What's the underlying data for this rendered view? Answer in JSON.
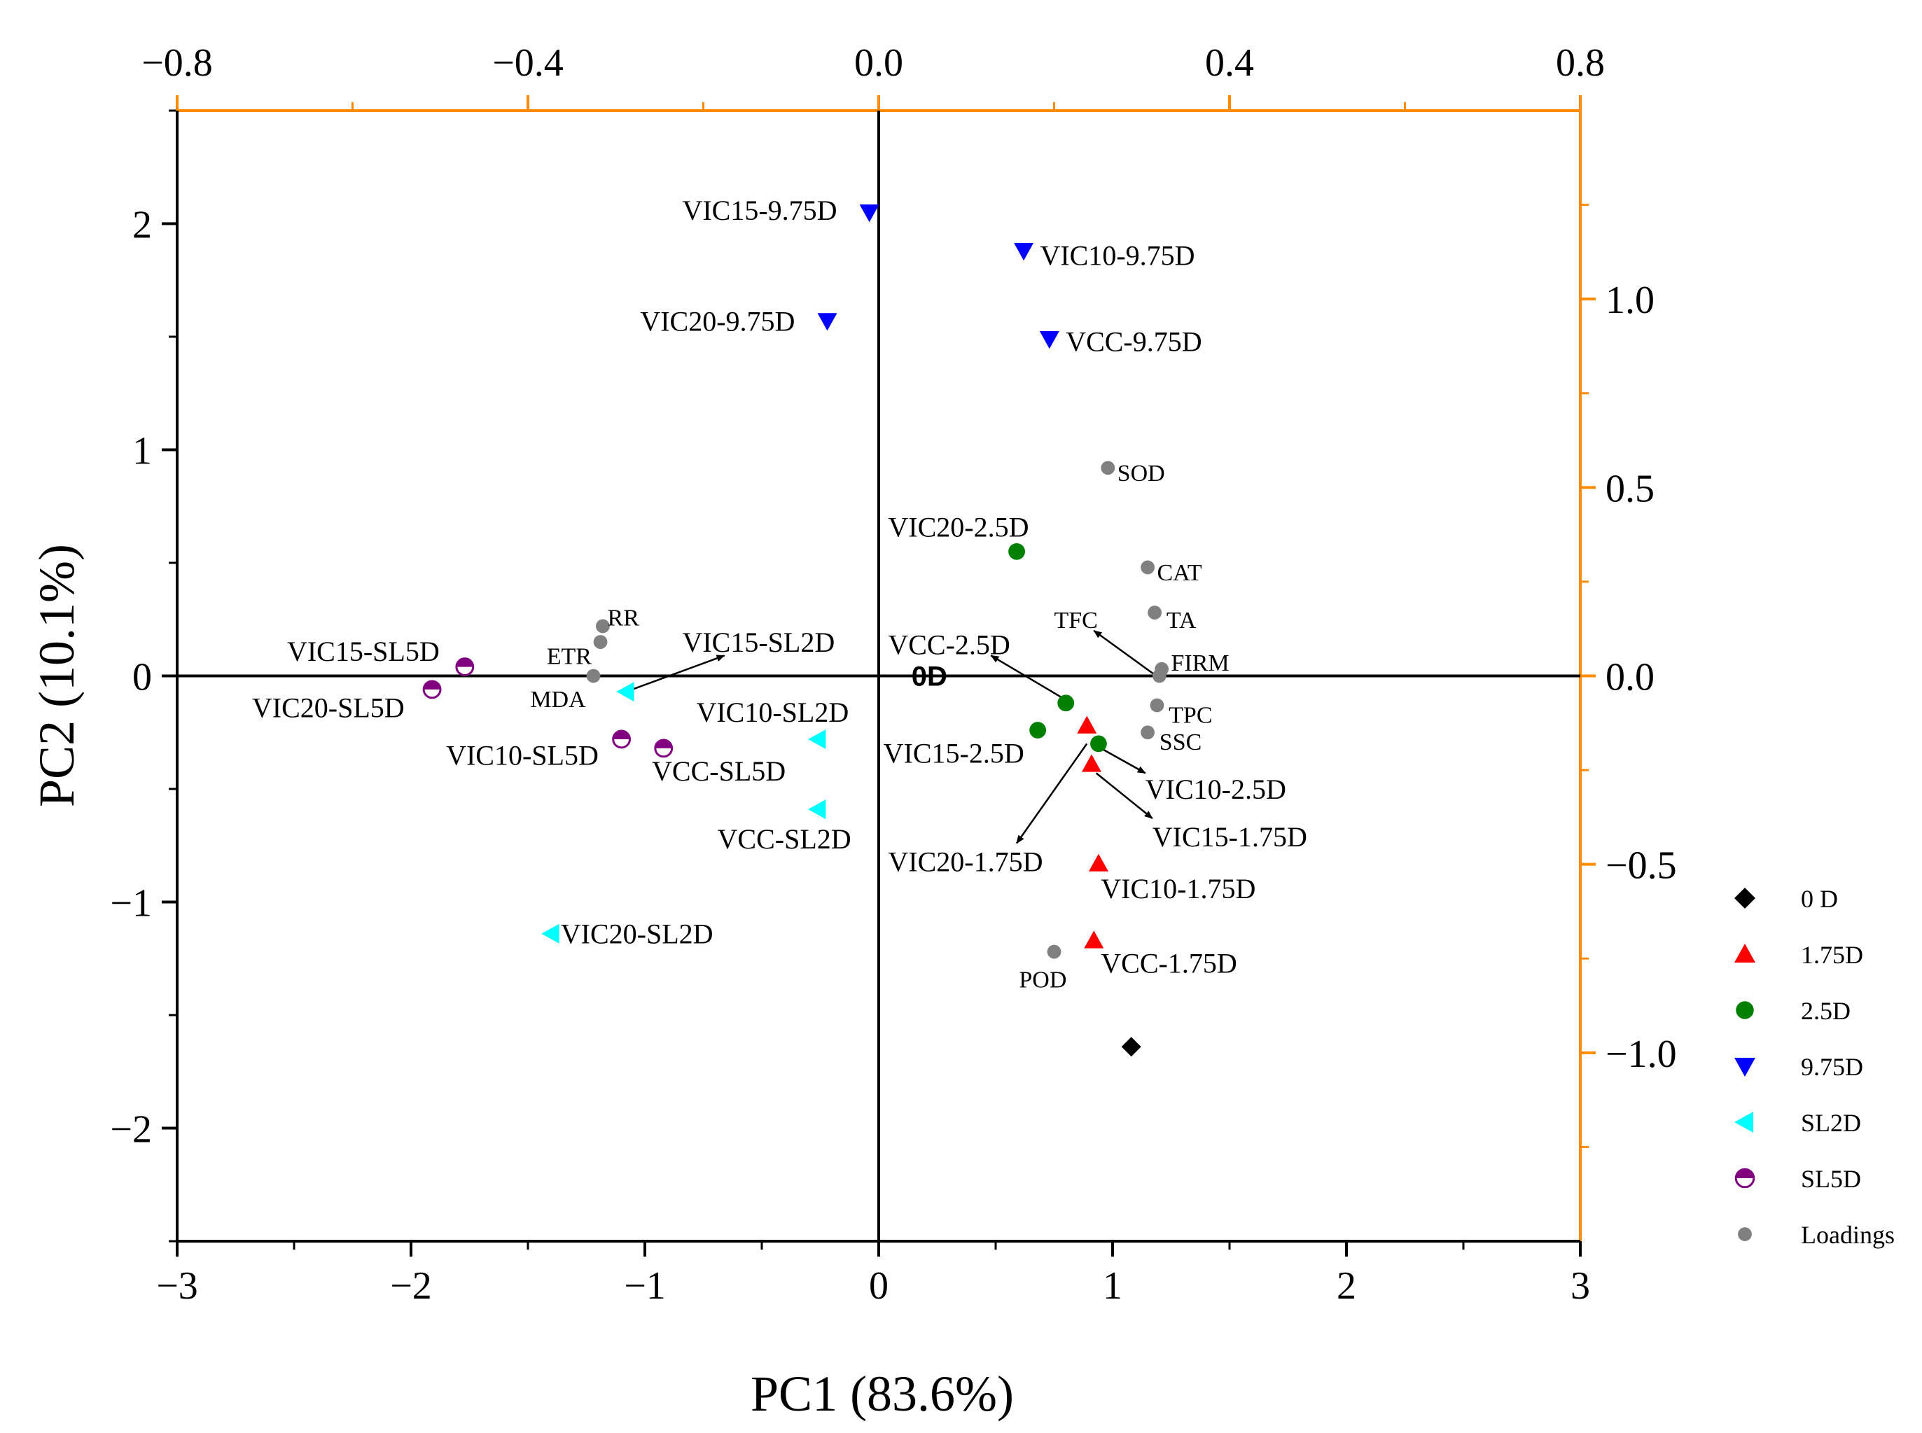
{
  "chart_data": {
    "type": "scatter",
    "title": "",
    "xlabel": "PC1 (83.6%)",
    "ylabel": "PC2 (10.1%)",
    "xlim": [
      -3,
      3
    ],
    "ylim": [
      -2.5,
      2.5
    ],
    "x_ticks": [
      "−3",
      "−2",
      "−1",
      "0",
      "1",
      "2",
      "3"
    ],
    "y_ticks": [
      "−2",
      "−1",
      "0",
      "1",
      "2"
    ],
    "x_tick_values": [
      -3,
      -2,
      -1,
      0,
      1,
      2,
      3
    ],
    "y_tick_values": [
      -2,
      -1,
      0,
      1,
      2
    ],
    "top_axis": {
      "lim": [
        -0.8,
        0.8
      ],
      "ticks": [
        "−0.8",
        "−0.4",
        "0.0",
        "0.4",
        "0.8"
      ],
      "tick_values": [
        -0.8,
        -0.4,
        0.0,
        0.4,
        0.8
      ],
      "color": "#ff8c00"
    },
    "right_axis": {
      "lim": [
        -1.5,
        1.5
      ],
      "ticks": [
        "1.0",
        "0.5",
        "0.0",
        "−0.5",
        "−1.0"
      ],
      "tick_values": [
        1.0,
        0.5,
        0.0,
        -0.5,
        -1.0
      ],
      "color": "#ff8c00"
    },
    "series": [
      {
        "name": "0 D",
        "marker": "diamond",
        "color": "#000000",
        "points": [
          {
            "label": "0D",
            "x": 1.08,
            "y": -1.64,
            "lx": 0.14,
            "ly": 0.0
          }
        ]
      },
      {
        "name": "1.75D",
        "marker": "triangle-up",
        "color": "#ff0000",
        "points": [
          {
            "label": "VIC10-1.75D",
            "x": 0.94,
            "y": -0.83,
            "lx": 0.95,
            "ly": -0.94
          },
          {
            "label": "VIC15-1.75D",
            "x": 0.91,
            "y": -0.39,
            "lx": 1.17,
            "ly": -0.71
          },
          {
            "label": "VIC20-1.75D",
            "x": 0.89,
            "y": -0.22,
            "lx": 0.04,
            "ly": -0.82
          },
          {
            "label": "VCC-1.75D",
            "x": 0.92,
            "y": -1.17,
            "lx": 0.95,
            "ly": -1.27
          }
        ]
      },
      {
        "name": "2.5D",
        "marker": "circle",
        "color": "#008000",
        "points": [
          {
            "label": "VIC20-2.5D",
            "x": 0.59,
            "y": 0.55,
            "lx": 0.04,
            "ly": 0.66
          },
          {
            "label": "VCC-2.5D",
            "x": 0.8,
            "y": -0.12,
            "lx": 0.04,
            "ly": 0.14
          },
          {
            "label": "VIC15-2.5D",
            "x": 0.68,
            "y": -0.24,
            "lx": 0.02,
            "ly": -0.34
          },
          {
            "label": "VIC10-2.5D",
            "x": 0.94,
            "y": -0.3,
            "lx": 1.14,
            "ly": -0.5
          }
        ]
      },
      {
        "name": "9.75D",
        "marker": "triangle-down",
        "color": "#0000ff",
        "points": [
          {
            "label": "VIC15-9.75D",
            "x": -0.04,
            "y": 2.05,
            "lx": -0.84,
            "ly": 2.06
          },
          {
            "label": "VIC10-9.75D",
            "x": 0.62,
            "y": 1.88,
            "lx": 0.69,
            "ly": 1.86
          },
          {
            "label": "VIC20-9.75D",
            "x": -0.22,
            "y": 1.57,
            "lx": -1.02,
            "ly": 1.57
          },
          {
            "label": "VCC-9.75D",
            "x": 0.73,
            "y": 1.49,
            "lx": 0.8,
            "ly": 1.48
          }
        ]
      },
      {
        "name": "SL2D",
        "marker": "triangle-left",
        "color": "#00ffff",
        "points": [
          {
            "label": "VIC15-SL2D",
            "x": -1.08,
            "y": -0.07,
            "lx": -0.84,
            "ly": 0.15
          },
          {
            "label": "VIC10-SL2D",
            "x": -0.26,
            "y": -0.28,
            "lx": -0.78,
            "ly": -0.16
          },
          {
            "label": "VCC-SL2D",
            "x": -0.26,
            "y": -0.59,
            "lx": -0.69,
            "ly": -0.72
          },
          {
            "label": "VIC20-SL2D",
            "x": -1.4,
            "y": -1.14,
            "lx": -1.36,
            "ly": -1.14
          }
        ]
      },
      {
        "name": "SL5D",
        "marker": "half-circle",
        "color": "#800080",
        "points": [
          {
            "label": "VIC15-SL5D",
            "x": -1.77,
            "y": 0.04,
            "lx": -2.53,
            "ly": 0.11
          },
          {
            "label": "VIC20-SL5D",
            "x": -1.91,
            "y": -0.06,
            "lx": -2.68,
            "ly": -0.14
          },
          {
            "label": "VIC10-SL5D",
            "x": -1.1,
            "y": -0.28,
            "lx": -1.85,
            "ly": -0.35
          },
          {
            "label": "VCC-SL5D",
            "x": -0.92,
            "y": -0.32,
            "lx": -0.97,
            "ly": -0.42
          }
        ]
      }
    ],
    "loadings": {
      "name": "Loadings",
      "color": "#808080",
      "points": [
        {
          "label": "SOD",
          "x": 0.98,
          "y": 0.92,
          "lx": 1.02,
          "ly": 0.9
        },
        {
          "label": "CAT",
          "x": 1.15,
          "y": 0.48,
          "lx": 1.19,
          "ly": 0.46
        },
        {
          "label": "TA",
          "x": 1.18,
          "y": 0.28,
          "lx": 1.23,
          "ly": 0.25
        },
        {
          "label": "FIRM",
          "x": 1.21,
          "y": 0.03,
          "lx": 1.25,
          "ly": 0.06
        },
        {
          "label": "TFC",
          "x": 1.2,
          "y": 0.0,
          "lx": 0.75,
          "ly": 0.25
        },
        {
          "label": "TPC",
          "x": 1.19,
          "y": -0.13,
          "lx": 1.24,
          "ly": -0.17
        },
        {
          "label": "SSC",
          "x": 1.15,
          "y": -0.25,
          "lx": 1.2,
          "ly": -0.29
        },
        {
          "label": "POD",
          "x": 0.75,
          "y": -1.22,
          "lx": 0.6,
          "ly": -1.34
        },
        {
          "label": "RR",
          "x": -1.18,
          "y": 0.22,
          "lx": -1.16,
          "ly": 0.26
        },
        {
          "label": "ETR",
          "x": -1.19,
          "y": 0.15,
          "lx": -1.42,
          "ly": 0.09
        },
        {
          "label": "MDA",
          "x": -1.22,
          "y": 0.0,
          "lx": -1.49,
          "ly": -0.1
        }
      ]
    },
    "annotations": [
      {
        "from": [
          -1.08,
          -0.07
        ],
        "to": [
          -0.66,
          0.09
        ]
      },
      {
        "from": [
          0.79,
          -0.1
        ],
        "to": [
          0.48,
          0.09
        ]
      },
      {
        "from": [
          1.2,
          -0.01
        ],
        "to": [
          0.92,
          0.2
        ]
      },
      {
        "from": [
          0.89,
          -0.3
        ],
        "to": [
          0.59,
          -0.74
        ]
      },
      {
        "from": [
          0.95,
          -0.32
        ],
        "to": [
          1.14,
          -0.43
        ]
      },
      {
        "from": [
          0.93,
          -0.43
        ],
        "to": [
          1.17,
          -0.63
        ]
      }
    ],
    "legend": {
      "position": "right",
      "items": [
        {
          "label": "0 D",
          "marker": "diamond",
          "color": "#000000"
        },
        {
          "label": "1.75D",
          "marker": "triangle-up",
          "color": "#ff0000"
        },
        {
          "label": "2.5D",
          "marker": "circle",
          "color": "#008000"
        },
        {
          "label": "9.75D",
          "marker": "triangle-down",
          "color": "#0000ff"
        },
        {
          "label": "SL2D",
          "marker": "triangle-left",
          "color": "#00ffff"
        },
        {
          "label": "SL5D",
          "marker": "half-circle",
          "color": "#800080"
        },
        {
          "label": "Loadings",
          "marker": "small-circle",
          "color": "#808080"
        }
      ]
    }
  }
}
